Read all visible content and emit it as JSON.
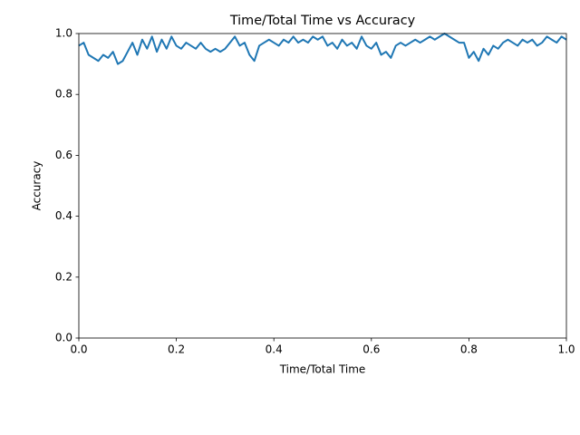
{
  "chart_data": {
    "type": "line",
    "title": "Time/Total Time vs Accuracy",
    "x_label": "Time/Total Time",
    "y_label": "Accuracy",
    "x": [
      0,
      0.01,
      0.02,
      0.03,
      0.04,
      0.05,
      0.06,
      0.07,
      0.08,
      0.09,
      0.1,
      0.11,
      0.12,
      0.13,
      0.14,
      0.15,
      0.16,
      0.17,
      0.18,
      0.19,
      0.2,
      0.21,
      0.22,
      0.23,
      0.24,
      0.25,
      0.26,
      0.27,
      0.28,
      0.29,
      0.3,
      0.31,
      0.32,
      0.33,
      0.34,
      0.35,
      0.36,
      0.37,
      0.38,
      0.39,
      0.4,
      0.41,
      0.42,
      0.43,
      0.44,
      0.45,
      0.46,
      0.47,
      0.48,
      0.49,
      0.5,
      0.51,
      0.52,
      0.53,
      0.54,
      0.55,
      0.56,
      0.57,
      0.58,
      0.59,
      0.6,
      0.61,
      0.62,
      0.63,
      0.64,
      0.65,
      0.66,
      0.67,
      0.68,
      0.69,
      0.7,
      0.71,
      0.72,
      0.73,
      0.74,
      0.75,
      0.76,
      0.77,
      0.78,
      0.79,
      0.8,
      0.81,
      0.82,
      0.83,
      0.84,
      0.85,
      0.86,
      0.87,
      0.88,
      0.89,
      0.9,
      0.91,
      0.92,
      0.93,
      0.94,
      0.95,
      0.96,
      0.97,
      0.98,
      0.99,
      1
    ],
    "series": [
      {
        "color": "#1f77b4",
        "values": [
          0.96,
          0.97,
          0.93,
          0.92,
          0.91,
          0.93,
          0.92,
          0.94,
          0.9,
          0.91,
          0.94,
          0.97,
          0.93,
          0.98,
          0.95,
          0.99,
          0.94,
          0.98,
          0.95,
          0.99,
          0.96,
          0.95,
          0.97,
          0.96,
          0.95,
          0.97,
          0.95,
          0.94,
          0.95,
          0.94,
          0.95,
          0.97,
          0.99,
          0.96,
          0.97,
          0.93,
          0.91,
          0.96,
          0.97,
          0.98,
          0.97,
          0.96,
          0.98,
          0.97,
          0.99,
          0.97,
          0.98,
          0.97,
          0.99,
          0.98,
          0.99,
          0.96,
          0.97,
          0.95,
          0.98,
          0.96,
          0.97,
          0.95,
          0.99,
          0.96,
          0.95,
          0.97,
          0.93,
          0.94,
          0.92,
          0.96,
          0.97,
          0.96,
          0.97,
          0.98,
          0.97,
          0.98,
          0.99,
          0.98,
          0.99,
          1.0,
          0.99,
          0.98,
          0.97,
          0.97,
          0.92,
          0.94,
          0.91,
          0.95,
          0.93,
          0.96,
          0.95,
          0.97,
          0.98,
          0.97,
          0.96,
          0.98,
          0.97,
          0.98,
          0.96,
          0.97,
          0.99,
          0.98,
          0.97,
          0.99,
          0.98
        ]
      }
    ],
    "xlim": [
      0,
      1
    ],
    "ylim": [
      0,
      1
    ],
    "xticks": [
      {
        "value": 0,
        "label": "0.0"
      },
      0.2,
      0.4,
      0.6,
      0.8,
      {
        "value": 1,
        "label": "1.0"
      }
    ],
    "yticks": [
      {
        "value": 0,
        "label": "0.0"
      },
      0.2,
      0.4,
      0.6,
      0.8,
      {
        "value": 1,
        "label": "1.0"
      }
    ]
  }
}
